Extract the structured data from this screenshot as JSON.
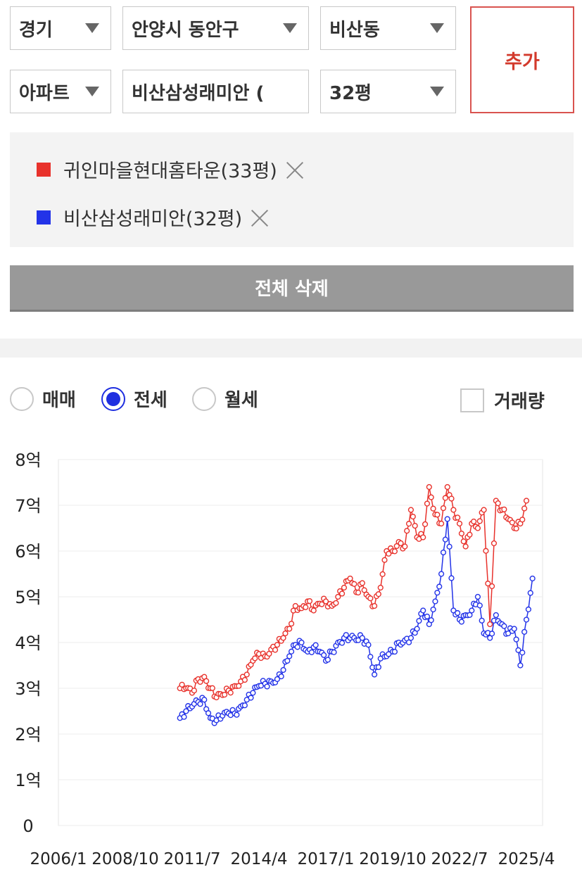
{
  "filters": {
    "region": "경기",
    "city": "안양시 동안구",
    "dong": "비산동",
    "type": "아파트",
    "complex": "비산삼성래미안 (",
    "size": "32평",
    "add_label": "추가"
  },
  "compare_items": [
    {
      "label": "귀인마을현대홈타운(33평)",
      "color": "#e8322c"
    },
    {
      "label": "비산삼성래미안(32평)",
      "color": "#2333e8"
    }
  ],
  "delete_all_label": "전체 삭제",
  "trade_types": [
    {
      "label": "매매",
      "selected": false
    },
    {
      "label": "전세",
      "selected": true
    },
    {
      "label": "월세",
      "selected": false
    }
  ],
  "volume_label": "거래량",
  "volume_checked": false,
  "chart_data": {
    "type": "line",
    "title": "",
    "xlabel": "",
    "ylabel": "",
    "x_ticks": [
      "2006/1",
      "2008/10",
      "2011/7",
      "2014/4",
      "2017/1",
      "2019/10",
      "2022/7",
      "2025/4"
    ],
    "y_ticks": [
      "0",
      "1억",
      "2억",
      "3억",
      "4억",
      "5억",
      "6억",
      "7억",
      "8억"
    ],
    "ylim": [
      0,
      8
    ],
    "xlim": [
      "2006/1",
      "2025/4"
    ],
    "grid": true,
    "series": [
      {
        "name": "귀인마을현대홈타운(33평)",
        "color": "#e8322c",
        "points": [
          [
            "2011/1",
            3.0
          ],
          [
            "2011/4",
            3.0
          ],
          [
            "2011/7",
            2.9
          ],
          [
            "2011/10",
            3.2
          ],
          [
            "2012/1",
            3.25
          ],
          [
            "2012/4",
            3.0
          ],
          [
            "2012/7",
            2.8
          ],
          [
            "2012/10",
            2.85
          ],
          [
            "2013/1",
            2.95
          ],
          [
            "2013/4",
            3.05
          ],
          [
            "2013/7",
            3.15
          ],
          [
            "2013/10",
            3.3
          ],
          [
            "2014/1",
            3.6
          ],
          [
            "2014/4",
            3.75
          ],
          [
            "2014/7",
            3.7
          ],
          [
            "2014/10",
            3.85
          ],
          [
            "2015/1",
            3.95
          ],
          [
            "2015/4",
            4.1
          ],
          [
            "2015/7",
            4.3
          ],
          [
            "2015/10",
            4.8
          ],
          [
            "2016/1",
            4.75
          ],
          [
            "2016/4",
            4.9
          ],
          [
            "2016/7",
            4.7
          ],
          [
            "2016/10",
            4.85
          ],
          [
            "2017/1",
            4.9
          ],
          [
            "2017/4",
            4.8
          ],
          [
            "2017/7",
            5.0
          ],
          [
            "2017/10",
            5.2
          ],
          [
            "2018/1",
            5.4
          ],
          [
            "2018/4",
            5.1
          ],
          [
            "2018/7",
            5.3
          ],
          [
            "2018/10",
            5.0
          ],
          [
            "2019/1",
            4.8
          ],
          [
            "2019/4",
            5.2
          ],
          [
            "2019/7",
            6.0
          ],
          [
            "2019/10",
            6.0
          ],
          [
            "2020/1",
            6.2
          ],
          [
            "2020/4",
            6.1
          ],
          [
            "2020/7",
            6.9
          ],
          [
            "2020/10",
            6.3
          ],
          [
            "2021/1",
            6.3
          ],
          [
            "2021/4",
            7.4
          ],
          [
            "2021/7",
            6.8
          ],
          [
            "2021/10",
            6.6
          ],
          [
            "2022/1",
            7.4
          ],
          [
            "2022/4",
            6.9
          ],
          [
            "2022/7",
            6.6
          ],
          [
            "2022/10",
            6.1
          ],
          [
            "2023/1",
            6.6
          ],
          [
            "2023/4",
            6.5
          ],
          [
            "2023/7",
            6.9
          ],
          [
            "2023/10",
            4.4
          ],
          [
            "2024/1",
            7.1
          ],
          [
            "2024/4",
            6.9
          ],
          [
            "2024/7",
            6.7
          ],
          [
            "2024/10",
            6.5
          ],
          [
            "2025/1",
            6.6
          ],
          [
            "2025/4",
            7.1
          ]
        ]
      },
      {
        "name": "비산삼성래미안(32평)",
        "color": "#2333e8",
        "points": [
          [
            "2011/1",
            2.35
          ],
          [
            "2011/4",
            2.5
          ],
          [
            "2011/7",
            2.6
          ],
          [
            "2011/10",
            2.7
          ],
          [
            "2012/1",
            2.75
          ],
          [
            "2012/4",
            2.35
          ],
          [
            "2012/7",
            2.3
          ],
          [
            "2012/10",
            2.4
          ],
          [
            "2013/1",
            2.45
          ],
          [
            "2013/4",
            2.45
          ],
          [
            "2013/7",
            2.6
          ],
          [
            "2013/10",
            2.75
          ],
          [
            "2014/1",
            2.9
          ],
          [
            "2014/4",
            3.05
          ],
          [
            "2014/7",
            3.1
          ],
          [
            "2014/10",
            3.15
          ],
          [
            "2015/1",
            3.2
          ],
          [
            "2015/4",
            3.4
          ],
          [
            "2015/7",
            3.7
          ],
          [
            "2015/10",
            3.95
          ],
          [
            "2016/1",
            4.0
          ],
          [
            "2016/4",
            3.8
          ],
          [
            "2016/7",
            3.9
          ],
          [
            "2016/10",
            3.8
          ],
          [
            "2017/1",
            3.6
          ],
          [
            "2017/4",
            3.8
          ],
          [
            "2017/7",
            4.0
          ],
          [
            "2017/10",
            4.1
          ],
          [
            "2018/1",
            4.1
          ],
          [
            "2018/4",
            4.05
          ],
          [
            "2018/7",
            4.1
          ],
          [
            "2018/10",
            3.95
          ],
          [
            "2019/1",
            3.3
          ],
          [
            "2019/4",
            3.65
          ],
          [
            "2019/7",
            3.7
          ],
          [
            "2019/10",
            3.8
          ],
          [
            "2020/1",
            4.0
          ],
          [
            "2020/4",
            4.05
          ],
          [
            "2020/7",
            4.1
          ],
          [
            "2020/10",
            4.3
          ],
          [
            "2021/1",
            4.7
          ],
          [
            "2021/4",
            4.4
          ],
          [
            "2021/7",
            4.9
          ],
          [
            "2021/10",
            5.5
          ],
          [
            "2022/1",
            6.7
          ],
          [
            "2022/4",
            4.7
          ],
          [
            "2022/7",
            4.5
          ],
          [
            "2022/10",
            4.6
          ],
          [
            "2023/1",
            4.7
          ],
          [
            "2023/4",
            5.0
          ],
          [
            "2023/7",
            4.2
          ],
          [
            "2023/10",
            4.1
          ],
          [
            "2024/1",
            4.6
          ],
          [
            "2024/4",
            4.4
          ],
          [
            "2024/7",
            4.2
          ],
          [
            "2024/10",
            4.3
          ],
          [
            "2025/1",
            3.5
          ],
          [
            "2025/4",
            4.5
          ],
          [
            "2025/7",
            5.4
          ]
        ]
      }
    ]
  }
}
